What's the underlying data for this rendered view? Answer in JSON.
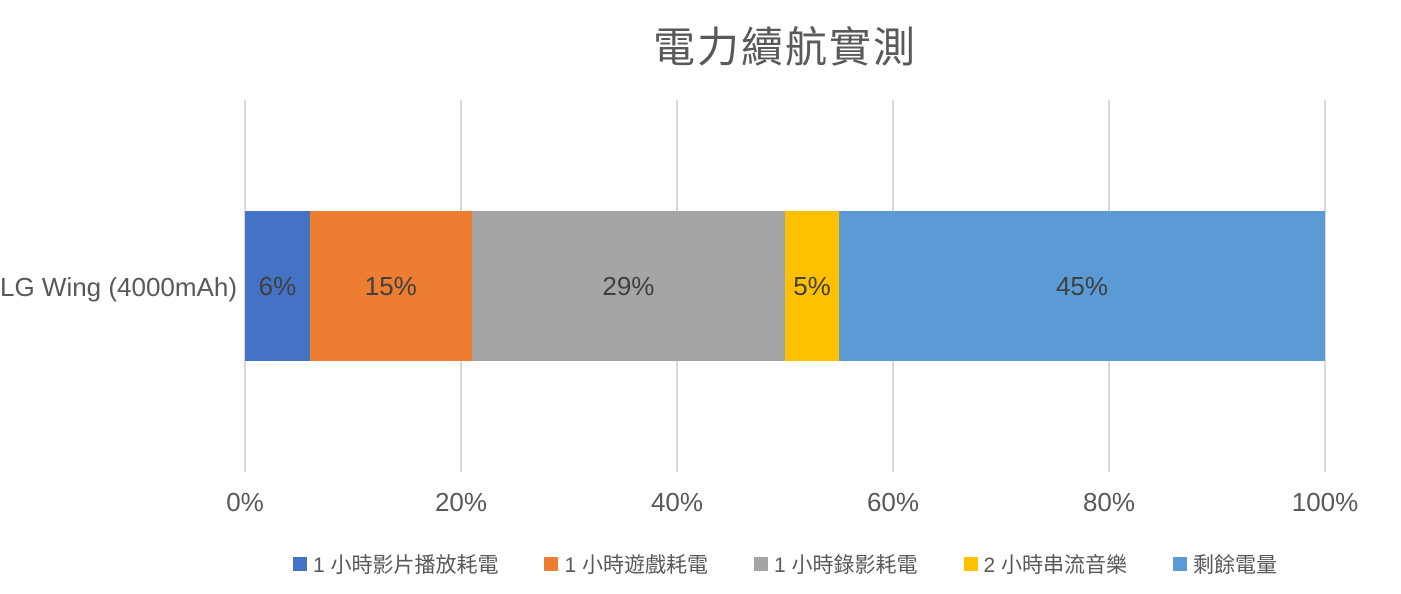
{
  "chart_data": {
    "type": "bar",
    "variant": "horizontal-stacked",
    "title": "電力續航實測",
    "categories": [
      "LG Wing (4000mAh)"
    ],
    "series": [
      {
        "name": "1 小時影片播放耗電",
        "color": "#4472c4",
        "values": [
          6
        ],
        "data_label": "6%"
      },
      {
        "name": "1 小時遊戲耗電",
        "color": "#ed7d31",
        "values": [
          15
        ],
        "data_label": "15%"
      },
      {
        "name": "1 小時錄影耗電",
        "color": "#a5a5a5",
        "values": [
          29
        ],
        "data_label": "29%"
      },
      {
        "name": "2 小時串流音樂",
        "color": "#ffc000",
        "values": [
          5
        ],
        "data_label": "5%"
      },
      {
        "name": "剩餘電量",
        "color": "#5b9bd5",
        "values": [
          45
        ],
        "data_label": "45%"
      }
    ],
    "x_axis": {
      "range": [
        0,
        100
      ],
      "ticks": [
        "0%",
        "20%",
        "40%",
        "60%",
        "80%",
        "100%"
      ]
    },
    "grid": true,
    "gridline_color": "#d9d9d9",
    "legend_position": "bottom",
    "text_colors": {
      "title": "#595959",
      "axis": "#595959",
      "data_label": "#404040"
    }
  }
}
